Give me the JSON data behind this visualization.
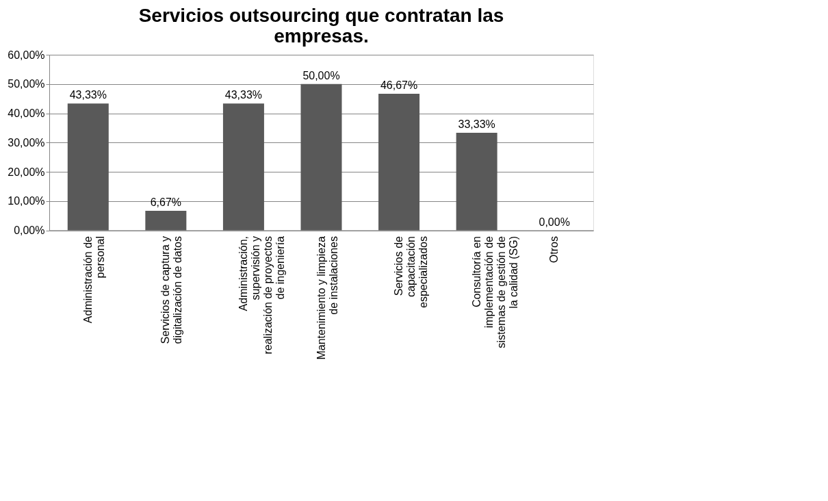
{
  "chart_data": {
    "type": "bar",
    "title": "Servicios outsourcing que contratan las empresas.",
    "categories": [
      "Administración de personal",
      "Servicios de captura y digitalización de datos",
      "Administración, supervisión y realización de proyectos de ingeniería",
      "Mantenimiento y limpieza de instalaciones",
      "Servicios de capacitación especializados",
      "Consultoría en implementación de sistemas de gestión de la calidad (SG)",
      "Otros"
    ],
    "values": [
      43.33,
      6.67,
      43.33,
      50,
      46.67,
      33.33,
      0
    ],
    "value_labels": [
      "43,33%",
      "6,67%",
      "43,33%",
      "50,00%",
      "46,67%",
      "33,33%",
      "0,00%"
    ],
    "color": "#595959",
    "ylim": [
      0,
      60
    ],
    "yticks": [
      {
        "value": 0,
        "label": "0,00%"
      },
      {
        "value": 10,
        "label": "10,00%"
      },
      {
        "value": 20,
        "label": "20,00%"
      },
      {
        "value": 30,
        "label": "30,00%"
      },
      {
        "value": 40,
        "label": "40,00%"
      },
      {
        "value": 50,
        "label": "50,00%"
      },
      {
        "value": 60,
        "label": "60,00%"
      }
    ],
    "grid": "y"
  }
}
